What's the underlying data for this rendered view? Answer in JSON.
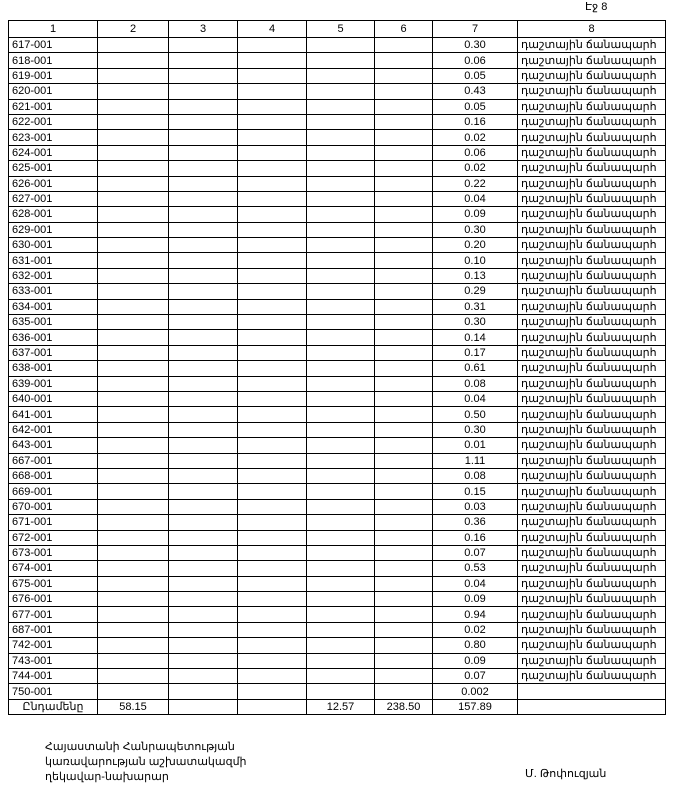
{
  "page_label": "Էջ 8",
  "table": {
    "columns": [
      "1",
      "2",
      "3",
      "4",
      "5",
      "6",
      "7",
      "8"
    ],
    "rows": [
      {
        "id": "617-001",
        "col7": "0.30",
        "col8": "դաշտային ճանապարհ"
      },
      {
        "id": "618-001",
        "col7": "0.06",
        "col8": "դաշտային ճանապարհ"
      },
      {
        "id": "619-001",
        "col7": "0.05",
        "col8": "դաշտային ճանապարհ"
      },
      {
        "id": "620-001",
        "col7": "0.43",
        "col8": "դաշտային ճանապարհ"
      },
      {
        "id": "621-001",
        "col7": "0.05",
        "col8": "դաշտային ճանապարհ"
      },
      {
        "id": "622-001",
        "col7": "0.16",
        "col8": "դաշտային ճանապարհ"
      },
      {
        "id": "623-001",
        "col7": "0.02",
        "col8": "դաշտային ճանապարհ"
      },
      {
        "id": "624-001",
        "col7": "0.06",
        "col8": "դաշտային ճանապարհ"
      },
      {
        "id": "625-001",
        "col7": "0.02",
        "col8": "դաշտային ճանապարհ"
      },
      {
        "id": "626-001",
        "col7": "0.22",
        "col8": "դաշտային ճանապարհ"
      },
      {
        "id": "627-001",
        "col7": "0.04",
        "col8": "դաշտային ճանապարհ"
      },
      {
        "id": "628-001",
        "col7": "0.09",
        "col8": "դաշտային ճանապարհ"
      },
      {
        "id": "629-001",
        "col7": "0.30",
        "col8": "դաշտային ճանապարհ"
      },
      {
        "id": "630-001",
        "col7": "0.20",
        "col8": "դաշտային ճանապարհ"
      },
      {
        "id": "631-001",
        "col7": "0.10",
        "col8": "դաշտային ճանապարհ"
      },
      {
        "id": "632-001",
        "col7": "0.13",
        "col8": "դաշտային ճանապարհ"
      },
      {
        "id": "633-001",
        "col7": "0.29",
        "col8": "դաշտային ճանապարհ"
      },
      {
        "id": "634-001",
        "col7": "0.31",
        "col8": "դաշտային ճանապարհ"
      },
      {
        "id": "635-001",
        "col7": "0.30",
        "col8": "դաշտային ճանապարհ"
      },
      {
        "id": "636-001",
        "col7": "0.14",
        "col8": "դաշտային ճանապարհ"
      },
      {
        "id": "637-001",
        "col7": "0.17",
        "col8": "դաշտային ճանապարհ"
      },
      {
        "id": "638-001",
        "col7": "0.61",
        "col8": "դաշտային ճանապարհ"
      },
      {
        "id": "639-001",
        "col7": "0.08",
        "col8": "դաշտային ճանապարհ"
      },
      {
        "id": "640-001",
        "col7": "0.04",
        "col8": "դաշտային ճանապարհ"
      },
      {
        "id": "641-001",
        "col7": "0.50",
        "col8": "դաշտային ճանապարհ"
      },
      {
        "id": "642-001",
        "col7": "0.30",
        "col8": "դաշտային ճանապարհ"
      },
      {
        "id": "643-001",
        "col7": "0.01",
        "col8": "դաշտային ճանապարհ"
      },
      {
        "id": "667-001",
        "col7": "1.11",
        "col8": "դաշտային ճանապարհ"
      },
      {
        "id": "668-001",
        "col7": "0.08",
        "col8": "դաշտային ճանապարհ"
      },
      {
        "id": "669-001",
        "col7": "0.15",
        "col8": "դաշտային ճանապարհ"
      },
      {
        "id": "670-001",
        "col7": "0.03",
        "col8": "դաշտային ճանապարհ"
      },
      {
        "id": "671-001",
        "col7": "0.36",
        "col8": "դաշտային ճանապարհ"
      },
      {
        "id": "672-001",
        "col7": "0.16",
        "col8": "դաշտային ճանապարհ"
      },
      {
        "id": "673-001",
        "col7": "0.07",
        "col8": "դաշտային ճանապարհ"
      },
      {
        "id": "674-001",
        "col7": "0.53",
        "col8": "դաշտային ճանապարհ"
      },
      {
        "id": "675-001",
        "col7": "0.04",
        "col8": "դաշտային ճանապարհ"
      },
      {
        "id": "676-001",
        "col7": "0.09",
        "col8": "դաշտային ճանապարհ"
      },
      {
        "id": "677-001",
        "col7": "0.94",
        "col8": "դաշտային ճանապարհ"
      },
      {
        "id": "687-001",
        "col7": "0.02",
        "col8": "դաշտային ճանապարհ"
      },
      {
        "id": "742-001",
        "col7": "0.80",
        "col8": "դաշտային ճանապարհ"
      },
      {
        "id": "743-001",
        "col7": "0.09",
        "col8": "դաշտային ճանապարհ"
      },
      {
        "id": "744-001",
        "col7": "0.07",
        "col8": "դաշտային ճանապարհ"
      },
      {
        "id": "750-001",
        "col7": "0.002"
      }
    ],
    "total": {
      "label": "Ընդամենը",
      "col2": "58.15",
      "col5": "12.57",
      "col6": "238.50",
      "col7": "157.89"
    }
  },
  "signature": {
    "lines": [
      "Հայաստանի Հանրապետության",
      "կառավարության աշխատակազմի",
      "ղեկավար-նախարար"
    ],
    "name": "Մ. Թոփուզյան"
  }
}
